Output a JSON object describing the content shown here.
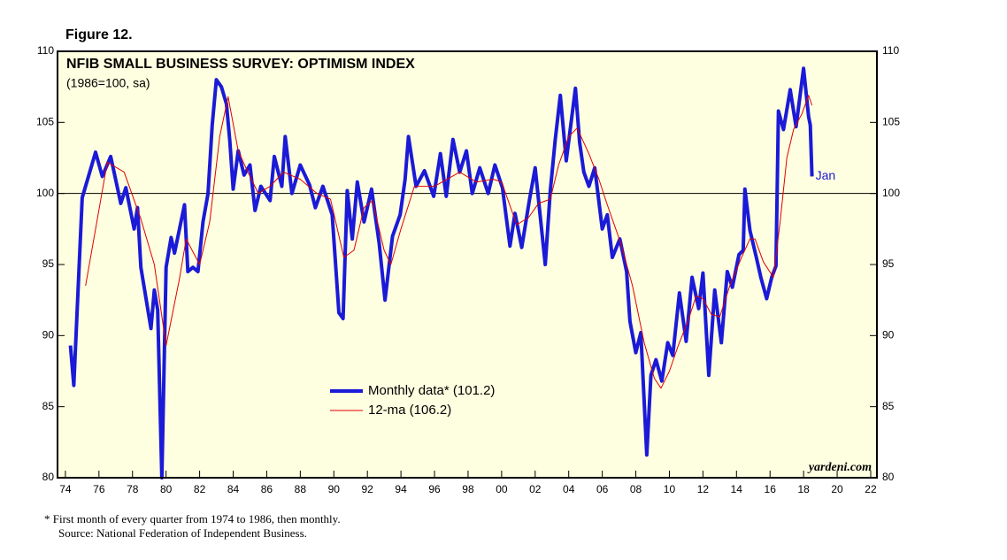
{
  "chart_data": {
    "type": "line",
    "figure_label": "Figure 12.",
    "title": "NFIB SMALL BUSINESS SURVEY: OPTIMISM INDEX",
    "subtitle": "(1986=100, sa)",
    "annotation": "Jan",
    "watermark": "yardeni.com",
    "notes": [
      "*   First month of every quarter from 1974 to 1986, then monthly.",
      "Source: National Federation of Independent Business."
    ],
    "xlim": [
      1973.53,
      2022.37
    ],
    "ylim": [
      80,
      110
    ],
    "reference_line": 100,
    "xticks": [
      {
        "value": 1974,
        "label": "74"
      },
      {
        "value": 1976,
        "label": "76"
      },
      {
        "value": 1978,
        "label": "78"
      },
      {
        "value": 1980,
        "label": "80"
      },
      {
        "value": 1982,
        "label": "82"
      },
      {
        "value": 1984,
        "label": "84"
      },
      {
        "value": 1986,
        "label": "86"
      },
      {
        "value": 1988,
        "label": "88"
      },
      {
        "value": 1990,
        "label": "90"
      },
      {
        "value": 1992,
        "label": "92"
      },
      {
        "value": 1994,
        "label": "94"
      },
      {
        "value": 1996,
        "label": "96"
      },
      {
        "value": 1998,
        "label": "98"
      },
      {
        "value": 2000,
        "label": "00"
      },
      {
        "value": 2002,
        "label": "02"
      },
      {
        "value": 2004,
        "label": "04"
      },
      {
        "value": 2006,
        "label": "06"
      },
      {
        "value": 2008,
        "label": "08"
      },
      {
        "value": 2010,
        "label": "10"
      },
      {
        "value": 2012,
        "label": "12"
      },
      {
        "value": 2014,
        "label": "14"
      },
      {
        "value": 2016,
        "label": "16"
      },
      {
        "value": 2018,
        "label": "18"
      },
      {
        "value": 2020,
        "label": "20"
      },
      {
        "value": 2022,
        "label": "22"
      }
    ],
    "yticks": [
      80,
      85,
      90,
      95,
      100,
      105,
      110
    ],
    "series": [
      {
        "name": "Monthly data* (101.2)",
        "color": "#1a1ad8",
        "width": 4,
        "x": [
          1974.3,
          1974.5,
          1975.0,
          1975.8,
          1976.2,
          1976.7,
          1977.3,
          1977.6,
          1978.1,
          1978.3,
          1978.5,
          1979.1,
          1979.3,
          1979.5,
          1979.75,
          1980.0,
          1980.3,
          1980.5,
          1981.1,
          1981.3,
          1981.6,
          1981.9,
          1982.2,
          1982.5,
          1982.75,
          1983.0,
          1983.3,
          1983.6,
          1983.8,
          1984.0,
          1984.3,
          1984.65,
          1985.0,
          1985.3,
          1985.65,
          1986.2,
          1986.45,
          1986.9,
          1987.1,
          1987.5,
          1988.0,
          1988.55,
          1988.9,
          1989.35,
          1989.9,
          1990.3,
          1990.55,
          1990.8,
          1991.1,
          1991.4,
          1991.8,
          1992.25,
          1992.7,
          1993.05,
          1993.5,
          1993.95,
          1994.25,
          1994.45,
          1994.9,
          1995.4,
          1995.95,
          1996.35,
          1996.7,
          1997.1,
          1997.5,
          1997.9,
          1998.25,
          1998.7,
          1999.2,
          1999.6,
          2000.05,
          2000.5,
          2000.8,
          2001.2,
          2001.65,
          2002.0,
          2002.6,
          2002.9,
          2003.2,
          2003.5,
          2003.85,
          2004.4,
          2004.65,
          2004.9,
          2005.2,
          2005.55,
          2006.0,
          2006.3,
          2006.6,
          2007.05,
          2007.45,
          2007.65,
          2008.0,
          2008.3,
          2008.65,
          2008.9,
          2009.2,
          2009.55,
          2009.9,
          2010.2,
          2010.6,
          2011.0,
          2011.35,
          2011.75,
          2012.0,
          2012.35,
          2012.7,
          2013.1,
          2013.45,
          2013.75,
          2014.15,
          2014.4,
          2014.5,
          2014.8,
          2015.2,
          2015.45,
          2015.8,
          2016.1,
          2016.35,
          2016.5,
          2016.8,
          2017.2,
          2017.55,
          2018.0,
          2018.3,
          2018.4,
          2018.5
        ],
        "values": [
          89.3,
          86.5,
          99.7,
          102.9,
          101.2,
          102.6,
          99.3,
          100.4,
          97.5,
          99,
          94.8,
          90.5,
          93.2,
          91.8,
          80,
          94.8,
          96.9,
          95.8,
          99.2,
          94.5,
          94.8,
          94.5,
          98,
          100,
          104.8,
          108,
          107.5,
          106.3,
          103.7,
          100.3,
          103,
          101.3,
          102,
          98.8,
          100.5,
          99.5,
          102.6,
          100.5,
          104,
          100,
          102,
          100.6,
          99,
          100.5,
          98.5,
          91.6,
          91.2,
          100.2,
          96.8,
          100.8,
          98,
          100.3,
          96.5,
          92.5,
          97,
          98.5,
          101,
          104,
          100.5,
          101.6,
          99.8,
          102.8,
          99.8,
          103.8,
          101.5,
          103,
          100,
          101.8,
          100,
          102,
          100.4,
          96.3,
          98.6,
          96.2,
          99.5,
          101.8,
          95,
          100.2,
          103.8,
          106.9,
          102.3,
          107.4,
          103.6,
          101.5,
          100.5,
          101.8,
          97.5,
          98.5,
          95.5,
          96.8,
          94.5,
          91,
          88.8,
          90.2,
          81.6,
          87.2,
          88.3,
          86.8,
          89.5,
          88.6,
          93,
          89.6,
          94.1,
          91.9,
          94.4,
          87.2,
          93.2,
          89.5,
          94.5,
          93.4,
          95.7,
          96,
          100.3,
          97.4,
          95.4,
          94.1,
          92.6,
          94.1,
          94.9,
          105.8,
          104.5,
          107.3,
          104.7,
          108.8,
          105.4,
          104.8,
          101.2
        ]
      },
      {
        "name": "12-ma (106.2)",
        "color": "#e00000",
        "width": 1,
        "x": [
          1975.2,
          1976.5,
          1977.5,
          1978.5,
          1979.3,
          1980.0,
          1980.8,
          1981.2,
          1982.0,
          1982.6,
          1983.2,
          1983.7,
          1984.3,
          1984.8,
          1985.5,
          1986.2,
          1987.0,
          1988.0,
          1989.0,
          1989.8,
          1990.6,
          1991.2,
          1991.8,
          1992.3,
          1993.0,
          1993.4,
          1994.0,
          1994.8,
          1996.0,
          1997.5,
          1998.5,
          1999.5,
          2000.0,
          2000.9,
          2001.6,
          2002.2,
          2002.9,
          2003.4,
          2004.0,
          2004.5,
          2005.2,
          2005.8,
          2006.3,
          2007.1,
          2007.8,
          2008.5,
          2009.1,
          2009.5,
          2010.0,
          2010.5,
          2011.1,
          2011.6,
          2012.0,
          2012.5,
          2013.0,
          2013.6,
          2014.3,
          2014.8,
          2015.1,
          2015.6,
          2016.2,
          2016.6,
          2017.0,
          2017.4,
          2017.9,
          2018.3,
          2018.5
        ],
        "values": [
          93.5,
          102.2,
          101.5,
          98.2,
          95,
          89.3,
          94,
          96.8,
          95,
          98,
          104,
          106.8,
          103,
          101.7,
          100,
          100.5,
          101.5,
          101,
          100,
          99.6,
          95.5,
          96,
          99,
          99.5,
          96,
          95,
          97.5,
          100.5,
          100.5,
          101.5,
          100.8,
          101,
          100.8,
          97.8,
          98.3,
          99.3,
          99.6,
          102,
          104,
          104.6,
          102.8,
          101,
          99.2,
          96.5,
          93.5,
          89.5,
          87,
          86.3,
          87.5,
          89.2,
          91,
          92.8,
          92.6,
          91.5,
          91.3,
          93.5,
          95.5,
          96.8,
          96.8,
          95.2,
          94.1,
          98,
          102.5,
          104.5,
          105.6,
          106.9,
          106.2
        ]
      }
    ]
  }
}
